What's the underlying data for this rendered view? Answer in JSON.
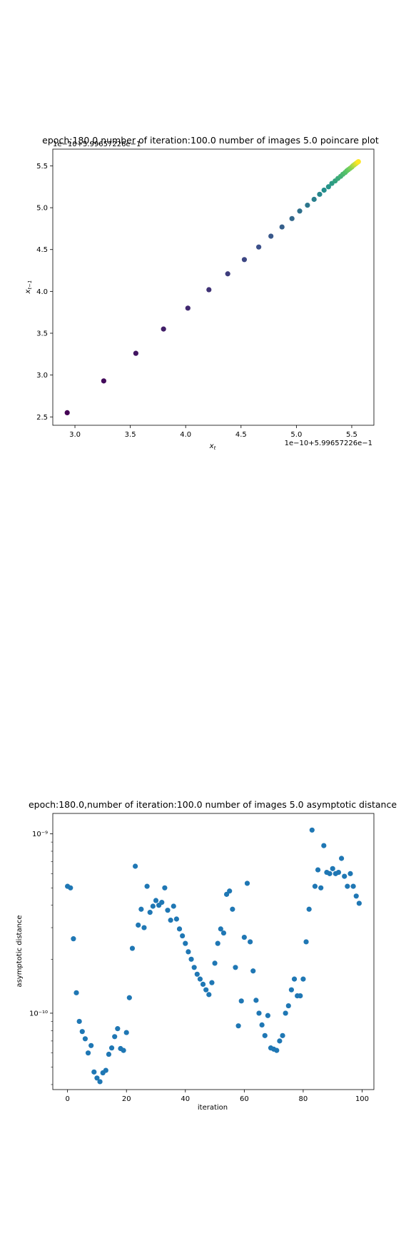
{
  "chart_data": [
    {
      "type": "scatter",
      "title": "epoch:180.0,number of iteration:100.0 number of images 5.0 poincare plot",
      "xlabel": "x_t",
      "ylabel": "x_{t-1}",
      "offset_label_x": "1e−10+5.99657226e−1",
      "offset_label_y": "1e−10+5.99657226e−1",
      "xlim": [
        2.8,
        5.7
      ],
      "ylim": [
        2.4,
        5.7
      ],
      "xticks": [
        3.0,
        3.5,
        4.0,
        4.5,
        5.0,
        5.5
      ],
      "xtick_labels": [
        "3.0",
        "3.5",
        "4.0",
        "4.5",
        "5.0",
        "5.5"
      ],
      "yticks": [
        2.5,
        3.0,
        3.5,
        4.0,
        4.5,
        5.0,
        5.5
      ],
      "ytick_labels": [
        "2.5",
        "3.0",
        "3.5",
        "4.0",
        "4.5",
        "5.0",
        "5.5"
      ],
      "colormap": "viridis",
      "point_color_low": "#440154",
      "point_color_high": "#fde725",
      "x": [
        2.93,
        3.26,
        3.55,
        3.8,
        4.02,
        4.21,
        4.38,
        4.53,
        4.66,
        4.77,
        4.87,
        4.96,
        5.03,
        5.1,
        5.16,
        5.21,
        5.25,
        5.29,
        5.32,
        5.35,
        5.375,
        5.4,
        5.42,
        5.44,
        5.455,
        5.47,
        5.485,
        5.5,
        5.51,
        5.52,
        5.53,
        5.54,
        5.55,
        5.56
      ],
      "y": [
        2.55,
        2.93,
        3.26,
        3.55,
        3.8,
        4.02,
        4.21,
        4.38,
        4.53,
        4.66,
        4.77,
        4.87,
        4.96,
        5.03,
        5.1,
        5.16,
        5.21,
        5.25,
        5.29,
        5.32,
        5.35,
        5.375,
        5.4,
        5.42,
        5.44,
        5.455,
        5.47,
        5.485,
        5.5,
        5.51,
        5.52,
        5.53,
        5.54,
        5.55
      ]
    },
    {
      "type": "scatter",
      "title": "epoch:180.0,number of iteration:100.0  number of images 5.0 asymptotic distance",
      "xlabel": "iteration",
      "ylabel": "asymptotic distance",
      "yscale": "log",
      "xlim": [
        -5,
        104
      ],
      "ylim": [
        3.75e-11,
        1.3e-09
      ],
      "xticks": [
        0,
        20,
        40,
        60,
        80,
        100
      ],
      "xtick_labels": [
        "0",
        "20",
        "40",
        "60",
        "80",
        "100"
      ],
      "yticks_major": [
        1e-10,
        1e-09
      ],
      "ytick_labels": [
        "10⁻¹⁰",
        "10⁻⁹"
      ],
      "point_color": "#1f77b4",
      "x": [
        0,
        1,
        2,
        3,
        4,
        5,
        6,
        7,
        8,
        9,
        10,
        11,
        12,
        13,
        14,
        15,
        16,
        17,
        18,
        19,
        20,
        21,
        22,
        23,
        24,
        25,
        26,
        27,
        28,
        29,
        30,
        31,
        32,
        33,
        34,
        35,
        36,
        37,
        38,
        39,
        40,
        41,
        42,
        43,
        44,
        45,
        46,
        47,
        48,
        49,
        50,
        51,
        52,
        53,
        54,
        55,
        56,
        57,
        58,
        59,
        60,
        61,
        62,
        63,
        64,
        65,
        66,
        67,
        68,
        69,
        70,
        71,
        72,
        73,
        74,
        75,
        76,
        77,
        78,
        79,
        80,
        81,
        82,
        83,
        84,
        85,
        86,
        87,
        88,
        89,
        90,
        91,
        92,
        93,
        94,
        95,
        96,
        97,
        98,
        99
      ],
      "y": [
        5.1e-10,
        5e-10,
        2.6e-10,
        1.3e-10,
        9e-11,
        7.9e-11,
        7.2e-11,
        6e-11,
        6.6e-11,
        4.7e-11,
        4.35e-11,
        4.15e-11,
        4.65e-11,
        4.8e-11,
        5.9e-11,
        6.4e-11,
        7.4e-11,
        8.2e-11,
        6.35e-11,
        6.2e-11,
        7.8e-11,
        1.22e-10,
        2.3e-10,
        6.6e-10,
        3.1e-10,
        3.8e-10,
        3e-10,
        5.1e-10,
        3.65e-10,
        3.95e-10,
        4.25e-10,
        4e-10,
        4.15e-10,
        5e-10,
        3.75e-10,
        3.3e-10,
        3.95e-10,
        3.35e-10,
        2.95e-10,
        2.7e-10,
        2.45e-10,
        2.2e-10,
        2e-10,
        1.8e-10,
        1.65e-10,
        1.55e-10,
        1.45e-10,
        1.35e-10,
        1.27e-10,
        1.48e-10,
        1.9e-10,
        2.45e-10,
        2.95e-10,
        2.8e-10,
        4.6e-10,
        4.8e-10,
        3.8e-10,
        1.8e-10,
        8.5e-11,
        1.17e-10,
        2.65e-10,
        5.3e-10,
        2.5e-10,
        1.72e-10,
        1.18e-10,
        1e-10,
        8.6e-11,
        7.5e-11,
        9.7e-11,
        6.4e-11,
        6.3e-11,
        6.2e-11,
        7e-11,
        7.5e-11,
        1e-10,
        1.1e-10,
        1.35e-10,
        1.55e-10,
        1.25e-10,
        1.25e-10,
        1.55e-10,
        2.5e-10,
        3.8e-10,
        1.05e-09,
        5.1e-10,
        6.3e-10,
        5e-10,
        8.6e-10,
        6.1e-10,
        6e-10,
        6.4e-10,
        6e-10,
        6.1e-10,
        7.3e-10,
        5.8e-10,
        5.1e-10,
        6e-10,
        5.1e-10,
        4.5e-10,
        4.1e-10
      ]
    }
  ]
}
